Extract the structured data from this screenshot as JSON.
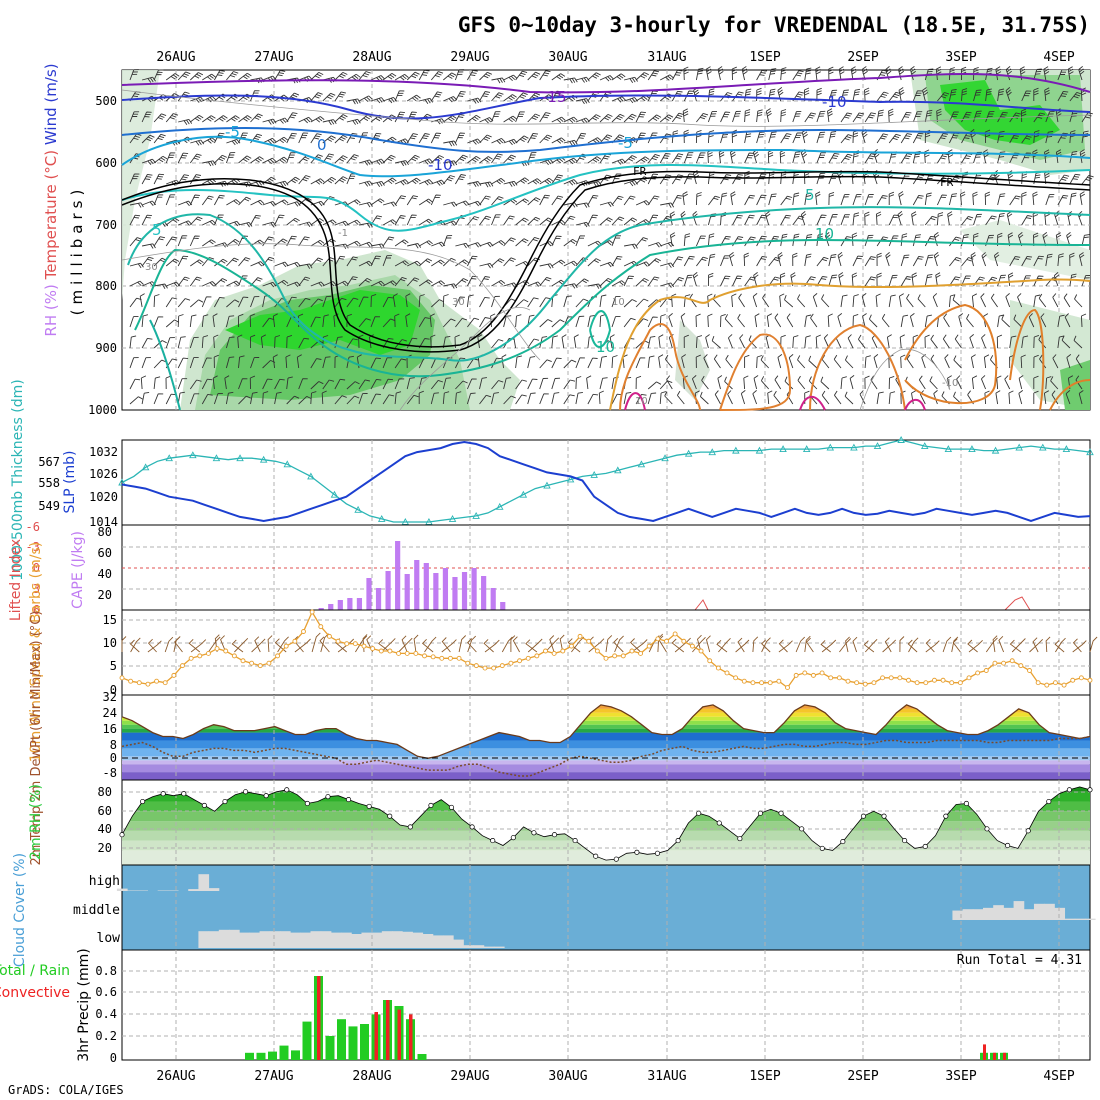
{
  "title": "GFS 0~10day 3-hourly for VREDENDAL (18.5E, 31.75S)",
  "credit": "GrADS: COLA/IGES",
  "colors": {
    "grid": "#b0b0b0",
    "frame": "#000000",
    "cloud_bg": "#6aaed6",
    "cloud_fill": "#dcdcdc",
    "thickness": "#2bb5b5",
    "slp": "#1c3fd0",
    "cape": "#c07cf2",
    "li": "#e05050",
    "wind": "#e8a030",
    "barb": "#8b5a2b",
    "rh_fill": "#2ecc40",
    "rain": "#22cc22",
    "conv": "#ee2222"
  },
  "chart_data": [
    {
      "id": "upper-air",
      "type": "contour",
      "x_dates": [
        "26AUG",
        "27AUG",
        "28AUG",
        "29AUG",
        "30AUG",
        "31AUG",
        "1SEP",
        "2SEP",
        "3SEP",
        "4SEP"
      ],
      "ylabel": "(millibars)",
      "legend": {
        "wind": "Wind (m/s)",
        "temperature": "Temperature (°C)",
        "rh": "RH (%)"
      },
      "y_ticks": [
        "500",
        "600",
        "700",
        "800",
        "900",
        "1000"
      ],
      "contour_labels": [
        "-15",
        "-10",
        "-5",
        "0",
        "5",
        "10",
        "-5",
        "-10",
        "5",
        "10",
        "FR",
        "FR",
        "30",
        "30",
        "10",
        "10",
        "-1",
        "-10"
      ]
    },
    {
      "id": "thickness-slp",
      "type": "line",
      "ylabel_left": "1000-500mb Thickness (dm)",
      "ylabel_right": "SLP (mb)",
      "yleft_ticks": [
        "567",
        "558",
        "549"
      ],
      "yright_ticks": [
        "1032",
        "1026",
        "1020",
        "1014"
      ],
      "ylim_thickness": [
        544,
        572
      ],
      "ylim_slp": [
        1013,
        1034
      ],
      "thickness_series": [
        558,
        560,
        563,
        565,
        566,
        566.5,
        567,
        566.5,
        566,
        565.5,
        566,
        566,
        565.5,
        565,
        564,
        562,
        560,
        557,
        554,
        551,
        549,
        547,
        546,
        545,
        545,
        545,
        545,
        545.5,
        546,
        546.5,
        547,
        548,
        550,
        552,
        554,
        556,
        557,
        558,
        559,
        560,
        560.5,
        561,
        562,
        563,
        564,
        565,
        566,
        567,
        567.5,
        568,
        568,
        568.5,
        568.5,
        568.5,
        568.5,
        569,
        569,
        569,
        569,
        569,
        569.5,
        569.5,
        569.5,
        570,
        570,
        571,
        572,
        571,
        570,
        569.5,
        569,
        569,
        569,
        568.5,
        568.5,
        569,
        569.5,
        570,
        569.5,
        569,
        569,
        568.5,
        568
      ],
      "slp_series": [
        1023,
        1022.5,
        1022,
        1021,
        1020,
        1019.5,
        1019,
        1018,
        1017,
        1016,
        1015,
        1014.5,
        1014,
        1014.5,
        1015,
        1016,
        1017,
        1018,
        1019,
        1020,
        1022,
        1024,
        1026,
        1028,
        1030,
        1031,
        1031.5,
        1032,
        1033,
        1033.5,
        1033,
        1032,
        1030,
        1029,
        1028,
        1027,
        1026,
        1025.5,
        1025,
        1024,
        1020,
        1018,
        1016,
        1015,
        1014.5,
        1014,
        1015,
        1016,
        1017,
        1016,
        1015,
        1016,
        1017,
        1016.5,
        1016,
        1015,
        1016,
        1017,
        1016,
        1015.5,
        1016,
        1017,
        1016,
        1015.5,
        1015.8,
        1016.5,
        1016,
        1015.5,
        1016,
        1017,
        1016.5,
        1016,
        1015.5,
        1016,
        1016.5,
        1016,
        1015,
        1014,
        1015,
        1016,
        1015.5,
        1015,
        1015.2
      ]
    },
    {
      "id": "cape-li",
      "type": "bar",
      "ylabel_left": "Lifted Index",
      "ylabel_right": "CAPE (J/kg)",
      "li_ticks": [
        "-6",
        "-3",
        "0",
        "3",
        "6"
      ],
      "cape_ticks": [
        "80",
        "60",
        "40",
        "20"
      ],
      "ylim_cape": [
        0,
        85
      ],
      "cape_values": [
        0,
        0,
        0,
        0,
        0,
        0,
        0,
        0,
        0,
        0,
        0,
        2,
        6,
        10,
        12,
        12,
        32,
        22,
        39,
        69,
        36,
        50,
        47,
        37,
        42,
        33,
        38,
        42,
        34,
        22,
        8
      ]
    },
    {
      "id": "wind10m",
      "type": "line",
      "ylabel": "10m Wind Speed & Barbs (m/s)",
      "y_ticks": [
        "15",
        "10",
        "5",
        "0"
      ],
      "ylim": [
        0,
        16
      ],
      "series": [
        2.5,
        1.8,
        1.5,
        1.2,
        1.8,
        1.5,
        3,
        5,
        6.5,
        7,
        7.5,
        8.5,
        8,
        7,
        6,
        5.5,
        5,
        5.5,
        7,
        9,
        10,
        12,
        16,
        13,
        11,
        10,
        9.5,
        9.5,
        9,
        8.5,
        8,
        8,
        7.5,
        7.5,
        7.5,
        7,
        6.8,
        6.5,
        6.5,
        6.5,
        5.5,
        5,
        4.5,
        4.5,
        5,
        5.5,
        6,
        6.5,
        7,
        8,
        7.5,
        8,
        9,
        11,
        10,
        8,
        6.5,
        7,
        7,
        8,
        7.5,
        9,
        10.5,
        10,
        11.5,
        10,
        9,
        8,
        6,
        4.5,
        3.5,
        2.5,
        1.8,
        1.5,
        1.5,
        1.5,
        1.8,
        0.5,
        3,
        3.5,
        3,
        3.5,
        2.5,
        2.5,
        1.8,
        1.5,
        1.2,
        1.5,
        2.5,
        2.5,
        2.5,
        2,
        1.5,
        1.5,
        2,
        2,
        1.5,
        1.5,
        2.5,
        3.5,
        4,
        5.5,
        5.5,
        6,
        5,
        4,
        1.5,
        1,
        1.5,
        1,
        2,
        2.5,
        2
      ]
    },
    {
      "id": "temp2m",
      "type": "area",
      "ylabel": "2m Temp 2m DewPt (6hr Min/Max) (°C)",
      "y_ticks": [
        "32",
        "24",
        "16",
        "8",
        "0",
        "-8"
      ],
      "ylim": [
        -10,
        32
      ],
      "temp_series": [
        22,
        20,
        17,
        14,
        12,
        12,
        11,
        13,
        16,
        18,
        17,
        15,
        15,
        15,
        16,
        17,
        15,
        13,
        13,
        15,
        16,
        16,
        13,
        11,
        10,
        10,
        9,
        8,
        5,
        2,
        1,
        2,
        4,
        6,
        8,
        10,
        12,
        14,
        13,
        12,
        10,
        10,
        9,
        9,
        12,
        18,
        24,
        28,
        27,
        25,
        22,
        18,
        14,
        13,
        13,
        16,
        22,
        27,
        28,
        25,
        20,
        16,
        15,
        14,
        14,
        19,
        25,
        28,
        27,
        24,
        19,
        16,
        15,
        14,
        13,
        18,
        24,
        28,
        26,
        22,
        18,
        15,
        14,
        13,
        13,
        15,
        18,
        22,
        26,
        24,
        18,
        14,
        13,
        12,
        11,
        12
      ],
      "dew_series": [
        7,
        8,
        9,
        7,
        4,
        2,
        2,
        4,
        5,
        6,
        6,
        5,
        5,
        4,
        5,
        6,
        6,
        5,
        4,
        3,
        2,
        1,
        -2,
        -2,
        -1,
        0,
        -1,
        -2,
        -3,
        -4,
        -5,
        -5,
        -5,
        -3,
        -2,
        -2,
        -4,
        -6,
        -7,
        -8,
        -8,
        -6,
        -4,
        -2,
        1,
        2,
        1,
        0,
        -1,
        -1,
        0,
        2,
        3,
        5,
        6,
        7,
        5,
        4,
        4,
        5,
        6,
        7,
        6,
        6,
        7,
        8,
        8,
        7,
        7,
        8,
        9,
        9,
        8,
        8,
        9,
        10,
        10,
        9,
        9,
        9,
        10,
        10,
        10,
        10,
        10,
        9,
        9,
        10,
        10,
        10,
        10,
        10,
        11,
        11,
        11,
        12
      ]
    },
    {
      "id": "rh2m",
      "type": "area",
      "ylabel": "2m RH (%)",
      "y_ticks": [
        "80",
        "60",
        "40",
        "20"
      ],
      "ylim": [
        5,
        90
      ],
      "series": [
        36,
        55,
        70,
        75,
        78,
        76,
        78,
        72,
        66,
        60,
        70,
        77,
        80,
        78,
        76,
        80,
        82,
        77,
        68,
        70,
        75,
        76,
        72,
        68,
        65,
        62,
        55,
        46,
        44,
        55,
        66,
        72,
        64,
        52,
        44,
        35,
        30,
        25,
        33,
        44,
        38,
        34,
        36,
        37,
        30,
        22,
        14,
        10,
        11,
        17,
        18,
        16,
        17,
        20,
        30,
        48,
        58,
        55,
        48,
        40,
        32,
        45,
        58,
        62,
        58,
        50,
        42,
        30,
        22,
        20,
        29,
        42,
        55,
        60,
        55,
        42,
        30,
        22,
        24,
        35,
        55,
        67,
        68,
        57,
        42,
        30,
        25,
        22,
        40,
        60,
        70,
        78,
        82,
        85,
        82
      ]
    },
    {
      "id": "cloud",
      "type": "bar",
      "ylabel": "Cloud Cover (%)",
      "levels": [
        "high",
        "middle",
        "low"
      ],
      "high_values": [
        10,
        2,
        2,
        0,
        2,
        2,
        0,
        8,
        70,
        12,
        0,
        0,
        0,
        0,
        0,
        0,
        0,
        0,
        0,
        0,
        0,
        0,
        0,
        0,
        0,
        0,
        0,
        0,
        0,
        0,
        0,
        0,
        0,
        0,
        0,
        0,
        0,
        0,
        0,
        0,
        0,
        0,
        0,
        0,
        0,
        0,
        0,
        0,
        0,
        0,
        0,
        0,
        0,
        0,
        0,
        0,
        0,
        0,
        0,
        0,
        0,
        0,
        0,
        0,
        0,
        0,
        0,
        0,
        0,
        0,
        0,
        0,
        0,
        0,
        0,
        0,
        0,
        0,
        0,
        0,
        0,
        0,
        0,
        0,
        0,
        0,
        0,
        0,
        0,
        0,
        0,
        0,
        0,
        0,
        0,
        0
      ],
      "middle_values": [
        0,
        0,
        0,
        0,
        0,
        0,
        0,
        0,
        0,
        0,
        0,
        0,
        0,
        0,
        0,
        0,
        0,
        0,
        0,
        0,
        0,
        0,
        0,
        0,
        0,
        0,
        0,
        0,
        0,
        0,
        0,
        0,
        0,
        0,
        0,
        0,
        0,
        0,
        0,
        0,
        0,
        0,
        0,
        0,
        0,
        0,
        0,
        0,
        0,
        0,
        0,
        0,
        0,
        0,
        0,
        0,
        0,
        0,
        0,
        0,
        0,
        0,
        0,
        0,
        0,
        0,
        0,
        0,
        0,
        0,
        0,
        0,
        0,
        0,
        0,
        0,
        0,
        0,
        0,
        0,
        0,
        0,
        35,
        40,
        40,
        45,
        55,
        45,
        70,
        40,
        60,
        60,
        45,
        5,
        5,
        5
      ],
      "low_values": [
        0,
        0,
        0,
        0,
        0,
        0,
        0,
        0,
        60,
        60,
        65,
        65,
        55,
        55,
        60,
        60,
        60,
        55,
        55,
        60,
        60,
        55,
        55,
        50,
        55,
        55,
        60,
        60,
        58,
        55,
        50,
        45,
        45,
        30,
        10,
        10,
        5,
        5,
        0,
        0,
        0,
        0,
        0,
        0,
        0,
        0,
        0,
        0,
        0,
        0,
        0,
        0,
        0,
        0,
        0,
        0,
        0,
        0,
        0,
        0,
        0,
        0,
        0,
        0,
        0,
        0,
        0,
        0,
        0,
        0,
        0,
        0,
        0,
        0,
        0,
        0,
        0,
        0,
        0,
        0,
        0,
        0,
        0,
        0,
        0,
        0,
        0,
        0,
        0,
        0,
        0,
        0,
        0,
        0,
        0,
        0
      ]
    },
    {
      "id": "precip",
      "type": "bar",
      "ylabel": "3hr Precip (mm)",
      "legend_total": "Total / Rain",
      "legend_conv": "Convective",
      "run_total_label": "Run Total = 4.31",
      "y_ticks": [
        "0.8",
        "0.6",
        "0.4",
        "0.2",
        "0"
      ],
      "ylim": [
        0,
        0.9
      ],
      "total": [
        0.06,
        0.06,
        0.07,
        0.12,
        0.08,
        0.32,
        0.7,
        0.2,
        0.34,
        0.28,
        0.3,
        0.38,
        0.5,
        0.45,
        0.34,
        0.05
      ],
      "conv": [
        0,
        0,
        0,
        0,
        0,
        0,
        0.7,
        0,
        0,
        0,
        0,
        0.4,
        0.5,
        0.42,
        0.38,
        0
      ],
      "total_late": [
        0.06,
        0.06,
        0.06
      ],
      "conv_late": [
        0.13,
        0.06,
        0.06
      ]
    }
  ]
}
